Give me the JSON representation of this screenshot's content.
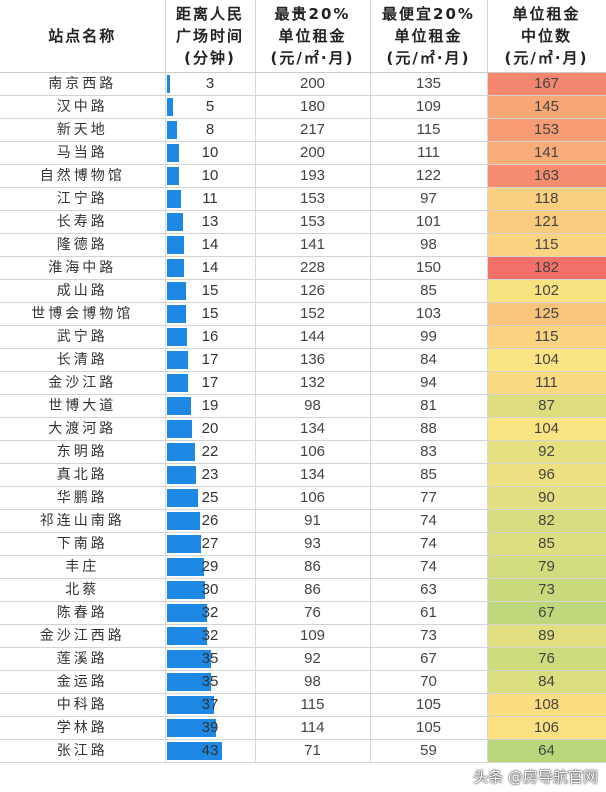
{
  "headers": [
    "站点名称",
    "距离人民\n广场时间\n(分钟)",
    "最贵20%\n单位租金\n(元/㎡·月)",
    "最便宜20%\n单位租金\n(元/㎡·月)",
    "单位租金\n中位数\n(元/㎡·月)"
  ],
  "colors": {
    "bar": "#1e88e5",
    "scale_low": "#b9d77a",
    "scale_mid": "#fbe483",
    "scale_high": "#f4716b"
  },
  "rows": [
    [
      "南京西路",
      3,
      200,
      135,
      167
    ],
    [
      "汉中路",
      5,
      180,
      109,
      145
    ],
    [
      "新天地",
      8,
      217,
      115,
      153
    ],
    [
      "马当路",
      10,
      200,
      111,
      141
    ],
    [
      "自然博物馆",
      10,
      193,
      122,
      163
    ],
    [
      "江宁路",
      11,
      153,
      97,
      118
    ],
    [
      "长寿路",
      13,
      153,
      101,
      121
    ],
    [
      "隆德路",
      14,
      141,
      98,
      115
    ],
    [
      "淮海中路",
      14,
      228,
      150,
      182
    ],
    [
      "成山路",
      15,
      126,
      85,
      102
    ],
    [
      "世博会博物馆",
      15,
      152,
      103,
      125
    ],
    [
      "武宁路",
      16,
      144,
      99,
      115
    ],
    [
      "长清路",
      17,
      136,
      84,
      104
    ],
    [
      "金沙江路",
      17,
      132,
      94,
      111
    ],
    [
      "世博大道",
      19,
      98,
      81,
      87
    ],
    [
      "大渡河路",
      20,
      134,
      88,
      104
    ],
    [
      "东明路",
      22,
      106,
      83,
      92
    ],
    [
      "真北路",
      23,
      134,
      85,
      96
    ],
    [
      "华鹏路",
      25,
      106,
      77,
      90
    ],
    [
      "祁连山南路",
      26,
      91,
      74,
      82
    ],
    [
      "下南路",
      27,
      93,
      74,
      85
    ],
    [
      "丰庄",
      29,
      86,
      74,
      79
    ],
    [
      "北蔡",
      30,
      86,
      63,
      73
    ],
    [
      "陈春路",
      32,
      76,
      61,
      67
    ],
    [
      "金沙江西路",
      32,
      109,
      73,
      89
    ],
    [
      "莲溪路",
      35,
      92,
      67,
      76
    ],
    [
      "金运路",
      35,
      98,
      70,
      84
    ],
    [
      "中科路",
      37,
      115,
      105,
      108
    ],
    [
      "学林路",
      39,
      114,
      105,
      106
    ],
    [
      "张江路",
      43,
      71,
      59,
      64
    ]
  ],
  "watermark": "头条 @房导航官网"
}
